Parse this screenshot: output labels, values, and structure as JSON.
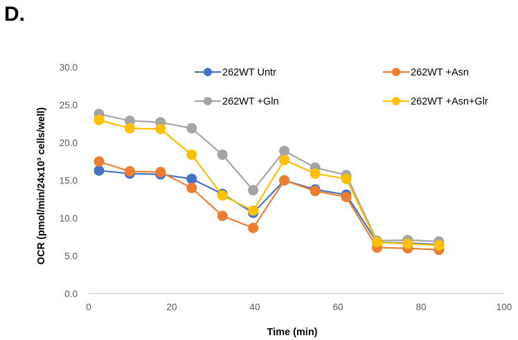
{
  "panel_label": "D.",
  "chart_data": {
    "type": "line",
    "title": "",
    "xlabel": "Time (min)",
    "ylabel": "OCR (pmol/min/24x10³ cells/well)",
    "xlim": [
      0,
      100
    ],
    "ylim": [
      0,
      30
    ],
    "x_ticks": [
      0,
      20,
      40,
      60,
      80,
      100
    ],
    "y_ticks": [
      0,
      5,
      10,
      15,
      20,
      25,
      30
    ],
    "x_tick_labels": [
      "0",
      "20",
      "40",
      "60",
      "80",
      "100"
    ],
    "y_tick_labels": [
      "0.0",
      "5.0",
      "10.0",
      "15.0",
      "20.0",
      "25.0",
      "30.0"
    ],
    "grid": false,
    "legend_position": "top",
    "x": [
      2.5,
      9.9,
      17.3,
      24.8,
      32.2,
      39.6,
      47.1,
      54.5,
      62.0,
      69.4,
      76.8,
      84.3
    ],
    "series": [
      {
        "name": "262WT Untr",
        "color": "#4472C4",
        "values": [
          16.3,
          15.9,
          15.8,
          15.2,
          13.2,
          10.7,
          15.0,
          13.8,
          13.1,
          6.8,
          6.7,
          6.5
        ]
      },
      {
        "name": "262WT +Asn",
        "color": "#ED7D31",
        "values": [
          17.5,
          16.2,
          16.1,
          14.0,
          10.3,
          8.7,
          15.0,
          13.6,
          12.8,
          6.1,
          6.0,
          5.8
        ]
      },
      {
        "name": "262WT +Gln",
        "color": "#A5A5A5",
        "values": [
          23.8,
          22.9,
          22.7,
          21.9,
          18.4,
          13.7,
          18.9,
          16.7,
          15.7,
          7.0,
          7.1,
          6.9
        ]
      },
      {
        "name": "262WT +Asn+Glr",
        "color": "#FFC000",
        "values": [
          23.0,
          21.9,
          21.8,
          18.4,
          13.0,
          11.0,
          17.7,
          15.9,
          15.2,
          6.8,
          6.6,
          6.4
        ]
      }
    ]
  }
}
